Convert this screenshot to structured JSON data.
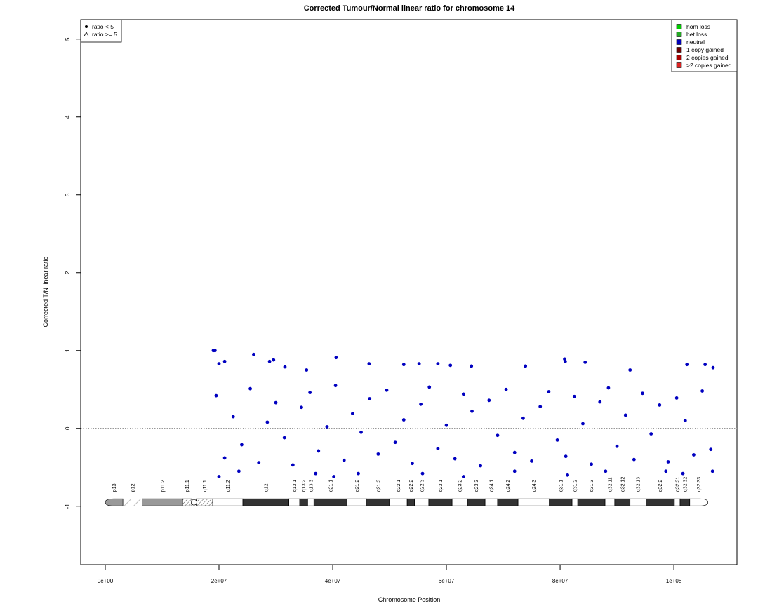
{
  "chart_data": {
    "type": "scatter",
    "title": "Corrected Tumour/Normal linear ratio for chromosome  14",
    "x_label": "Chromosome Position",
    "y_label": "Corrected T/N linear ratio",
    "xlim": [
      -4320000.0,
      111100000.0
    ],
    "ylim": [
      -1.75,
      5.25
    ],
    "xticks": [
      {
        "value": 0,
        "label": "0e+00"
      },
      {
        "value": 20000000.0,
        "label": "2e+07"
      },
      {
        "value": 40000000.0,
        "label": "4e+07"
      },
      {
        "value": 60000000.0,
        "label": "6e+07"
      },
      {
        "value": 80000000.0,
        "label": "8e+07"
      },
      {
        "value": 100000000.0,
        "label": "1e+08"
      }
    ],
    "yticks": [
      -1,
      0,
      1,
      2,
      3,
      4,
      5
    ],
    "hline": 0,
    "series": [
      {
        "color": "#0000c0",
        "x": [
          19000000.0,
          19300000.0,
          20000000.0,
          21000000.0,
          26100000.0,
          28900000.0,
          29600000.0,
          31600000.0,
          35400000.0,
          40600000.0,
          46400000.0,
          52500000.0,
          55200000.0,
          58500000.0,
          60700000.0,
          64400000.0,
          73900000.0,
          80800000.0,
          80900000.0,
          84400000.0,
          92300000.0,
          102300000.0,
          105500000.0,
          106900000.0,
          20000000.0,
          23500000.0,
          37000000.0,
          40200000.0,
          44500000.0,
          55800000.0,
          63000000.0,
          72000000.0,
          81300000.0,
          88000000.0,
          98600000.0,
          101600000.0,
          106800000.0,
          19500000.0,
          21000000.0,
          22500000.0,
          24000000.0,
          25500000.0,
          27000000.0,
          28500000.0,
          30000000.0,
          31500000.0,
          33000000.0,
          34500000.0,
          36000000.0,
          37500000.0,
          39000000.0,
          40500000.0,
          42000000.0,
          43500000.0,
          45000000.0,
          46500000.0,
          48000000.0,
          49500000.0,
          51000000.0,
          52500000.0,
          54000000.0,
          55500000.0,
          57000000.0,
          58500000.0,
          60000000.0,
          61500000.0,
          63000000.0,
          64500000.0,
          66000000.0,
          67500000.0,
          69000000.0,
          70500000.0,
          72000000.0,
          73500000.0,
          75000000.0,
          76500000.0,
          78000000.0,
          79500000.0,
          81000000.0,
          82500000.0,
          84000000.0,
          85500000.0,
          87000000.0,
          88500000.0,
          90000000.0,
          91500000.0,
          93000000.0,
          94500000.0,
          96000000.0,
          97500000.0,
          99000000.0,
          100500000.0,
          102000000.0,
          103500000.0,
          105000000.0,
          106500000.0
        ],
        "values": [
          1.0,
          1.0,
          0.83,
          0.86,
          0.95,
          0.86,
          0.88,
          0.79,
          0.75,
          0.91,
          0.83,
          0.82,
          0.83,
          0.83,
          0.81,
          0.8,
          0.8,
          0.89,
          0.86,
          0.85,
          0.75,
          0.82,
          0.82,
          0.78,
          -0.62,
          -0.55,
          -0.58,
          -0.62,
          -0.58,
          -0.58,
          -0.62,
          -0.55,
          -0.6,
          -0.55,
          -0.55,
          -0.58,
          -0.55,
          0.42,
          -0.38,
          0.15,
          -0.21,
          0.51,
          -0.44,
          0.08,
          0.33,
          -0.12,
          -0.47,
          0.27,
          0.46,
          -0.29,
          0.02,
          0.55,
          -0.41,
          0.19,
          -0.05,
          0.38,
          -0.33,
          0.49,
          -0.18,
          0.11,
          -0.45,
          0.31,
          0.53,
          -0.26,
          0.04,
          -0.39,
          0.44,
          0.22,
          -0.48,
          0.36,
          -0.09,
          0.5,
          -0.31,
          0.13,
          -0.42,
          0.28,
          0.47,
          -0.15,
          -0.36,
          0.41,
          0.06,
          -0.46,
          0.34,
          0.52,
          -0.23,
          0.17,
          -0.4,
          0.45,
          -0.07,
          0.3,
          -0.43,
          0.39,
          0.1,
          -0.34,
          0.48,
          -0.27
        ]
      }
    ],
    "shape_legend": [
      {
        "name": "ratio < 5",
        "shape": "dot"
      },
      {
        "name": "ratio >= 5",
        "shape": "triangle"
      }
    ],
    "copy_number_legend": [
      {
        "name": "hom loss",
        "color": "#00cc00"
      },
      {
        "name": "het loss",
        "color": "#22aa22"
      },
      {
        "name": "neutral",
        "color": "#0000bb"
      },
      {
        "name": "1 copy gained",
        "color": "#6b0000"
      },
      {
        "name": "2 copies gained",
        "color": "#aa0000"
      },
      {
        "name": ">2 copies gained",
        "color": "#dd2222"
      }
    ],
    "ideogram": [
      {
        "name": "p13",
        "start": 0,
        "end": 3100000.0,
        "stain": "gvar"
      },
      {
        "name": "p12",
        "start": 3100000.0,
        "end": 6500000.0,
        "stain": "stalk"
      },
      {
        "name": "p11.2",
        "start": 6500000.0,
        "end": 13600000.0,
        "stain": "gvar"
      },
      {
        "name": "p11.1",
        "start": 13600000.0,
        "end": 15200000.0,
        "stain": "acen"
      },
      {
        "name": "q11.1",
        "start": 16000000.0,
        "end": 18900000.0,
        "stain": "acen"
      },
      {
        "name": "q11.2",
        "start": 18900000.0,
        "end": 24200000.0,
        "stain": "gneg"
      },
      {
        "name": "q12",
        "start": 24200000.0,
        "end": 32300000.0,
        "stain": "gpos"
      },
      {
        "name": "q13.1",
        "start": 32300000.0,
        "end": 34200000.0,
        "stain": "gneg"
      },
      {
        "name": "q13.2",
        "start": 34200000.0,
        "end": 35600000.0,
        "stain": "gpos"
      },
      {
        "name": "q13.3",
        "start": 35600000.0,
        "end": 36700000.0,
        "stain": "gneg"
      },
      {
        "name": "q21.1",
        "start": 36700000.0,
        "end": 42500000.0,
        "stain": "gpos"
      },
      {
        "name": "q21.2",
        "start": 42500000.0,
        "end": 46000000.0,
        "stain": "gneg"
      },
      {
        "name": "q21.3",
        "start": 46000000.0,
        "end": 50000000.0,
        "stain": "gpos"
      },
      {
        "name": "q22.1",
        "start": 50000000.0,
        "end": 53100000.0,
        "stain": "gneg"
      },
      {
        "name": "q22.2",
        "start": 53100000.0,
        "end": 54400000.0,
        "stain": "gpos"
      },
      {
        "name": "q22.3",
        "start": 54400000.0,
        "end": 56900000.0,
        "stain": "gneg"
      },
      {
        "name": "q23.1",
        "start": 56900000.0,
        "end": 61000000.0,
        "stain": "gpos"
      },
      {
        "name": "q23.2",
        "start": 61000000.0,
        "end": 63700000.0,
        "stain": "gneg"
      },
      {
        "name": "q23.3",
        "start": 63700000.0,
        "end": 66800000.0,
        "stain": "gpos"
      },
      {
        "name": "q24.1",
        "start": 66800000.0,
        "end": 69000000.0,
        "stain": "gneg"
      },
      {
        "name": "q24.2",
        "start": 69000000.0,
        "end": 72600000.0,
        "stain": "gpos"
      },
      {
        "name": "q24.3",
        "start": 72600000.0,
        "end": 78100000.0,
        "stain": "gneg"
      },
      {
        "name": "q31.1",
        "start": 78100000.0,
        "end": 82100000.0,
        "stain": "gpos"
      },
      {
        "name": "q31.2",
        "start": 82100000.0,
        "end": 83100000.0,
        "stain": "gneg"
      },
      {
        "name": "q31.3",
        "start": 83100000.0,
        "end": 87900000.0,
        "stain": "gpos"
      },
      {
        "name": "q32.11",
        "start": 87900000.0,
        "end": 89600000.0,
        "stain": "gneg"
      },
      {
        "name": "q32.12",
        "start": 89600000.0,
        "end": 92300000.0,
        "stain": "gpos"
      },
      {
        "name": "q32.13",
        "start": 92300000.0,
        "end": 95100000.0,
        "stain": "gneg"
      },
      {
        "name": "q32.2",
        "start": 95100000.0,
        "end": 100100000.0,
        "stain": "gpos"
      },
      {
        "name": "q32.31",
        "start": 100100000.0,
        "end": 101100000.0,
        "stain": "gneg"
      },
      {
        "name": "q32.32",
        "start": 101100000.0,
        "end": 102800000.0,
        "stain": "gpos"
      },
      {
        "name": "q32.33",
        "start": 102800000.0,
        "end": 106000000.0,
        "stain": "gneg"
      }
    ]
  }
}
